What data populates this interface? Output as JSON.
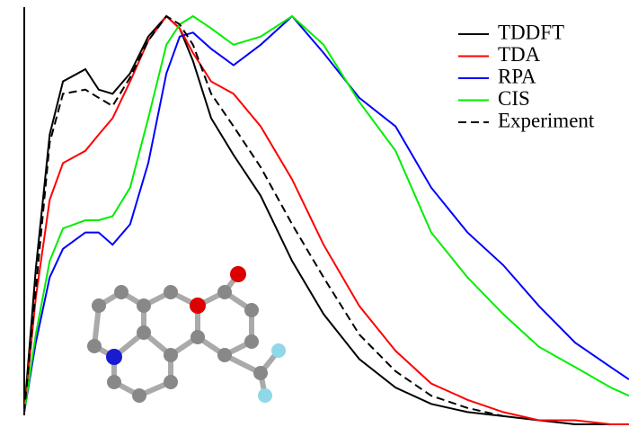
{
  "chart_data": {
    "type": "line",
    "x": [
      0,
      0.019,
      0.042,
      0.064,
      0.101,
      0.123,
      0.146,
      0.175,
      0.205,
      0.235,
      0.257,
      0.279,
      0.309,
      0.346,
      0.391,
      0.443,
      0.495,
      0.554,
      0.614,
      0.673,
      0.733,
      0.792,
      0.851,
      0.911,
      0.97,
      1.0
    ],
    "xlim": [
      0,
      1
    ],
    "ylim": [
      0,
      1
    ],
    "legend": "upper right",
    "series": [
      {
        "name": "TDDFT",
        "color": "#000000",
        "dashed": false,
        "values": [
          0.03,
          0.38,
          0.71,
          0.84,
          0.87,
          0.82,
          0.81,
          0.86,
          0.95,
          1.0,
          0.97,
          0.89,
          0.75,
          0.66,
          0.56,
          0.4,
          0.27,
          0.16,
          0.09,
          0.05,
          0.03,
          0.02,
          0.01,
          0.0,
          0.0,
          0.0
        ]
      },
      {
        "name": "TDA",
        "color": "#ff0000",
        "dashed": false,
        "values": [
          0.03,
          0.31,
          0.55,
          0.64,
          0.67,
          0.71,
          0.75,
          0.84,
          0.94,
          1.0,
          0.97,
          0.91,
          0.84,
          0.81,
          0.73,
          0.6,
          0.44,
          0.29,
          0.18,
          0.1,
          0.06,
          0.03,
          0.01,
          0.01,
          0.0,
          0.0
        ]
      },
      {
        "name": "RPA",
        "color": "#0000ff",
        "dashed": false,
        "values": [
          0.03,
          0.2,
          0.36,
          0.43,
          0.47,
          0.47,
          0.44,
          0.49,
          0.64,
          0.86,
          0.95,
          0.96,
          0.92,
          0.88,
          0.93,
          1.0,
          0.91,
          0.8,
          0.73,
          0.58,
          0.47,
          0.39,
          0.29,
          0.2,
          0.14,
          0.11
        ]
      },
      {
        "name": "CIS",
        "color": "#00ee00",
        "dashed": false,
        "values": [
          0.03,
          0.22,
          0.4,
          0.48,
          0.5,
          0.5,
          0.51,
          0.58,
          0.75,
          0.93,
          0.98,
          1.0,
          0.97,
          0.93,
          0.95,
          1.0,
          0.93,
          0.79,
          0.67,
          0.47,
          0.36,
          0.27,
          0.19,
          0.14,
          0.09,
          0.07
        ]
      },
      {
        "name": "Experiment",
        "color": "#000000",
        "dashed": true,
        "values": [
          0.03,
          0.33,
          0.69,
          0.81,
          0.82,
          0.8,
          0.78,
          0.85,
          0.94,
          1.0,
          0.98,
          0.93,
          0.81,
          0.73,
          0.63,
          0.49,
          0.36,
          0.22,
          0.13,
          0.07,
          0.04,
          0.02,
          null,
          null,
          null,
          null
        ]
      }
    ]
  }
}
